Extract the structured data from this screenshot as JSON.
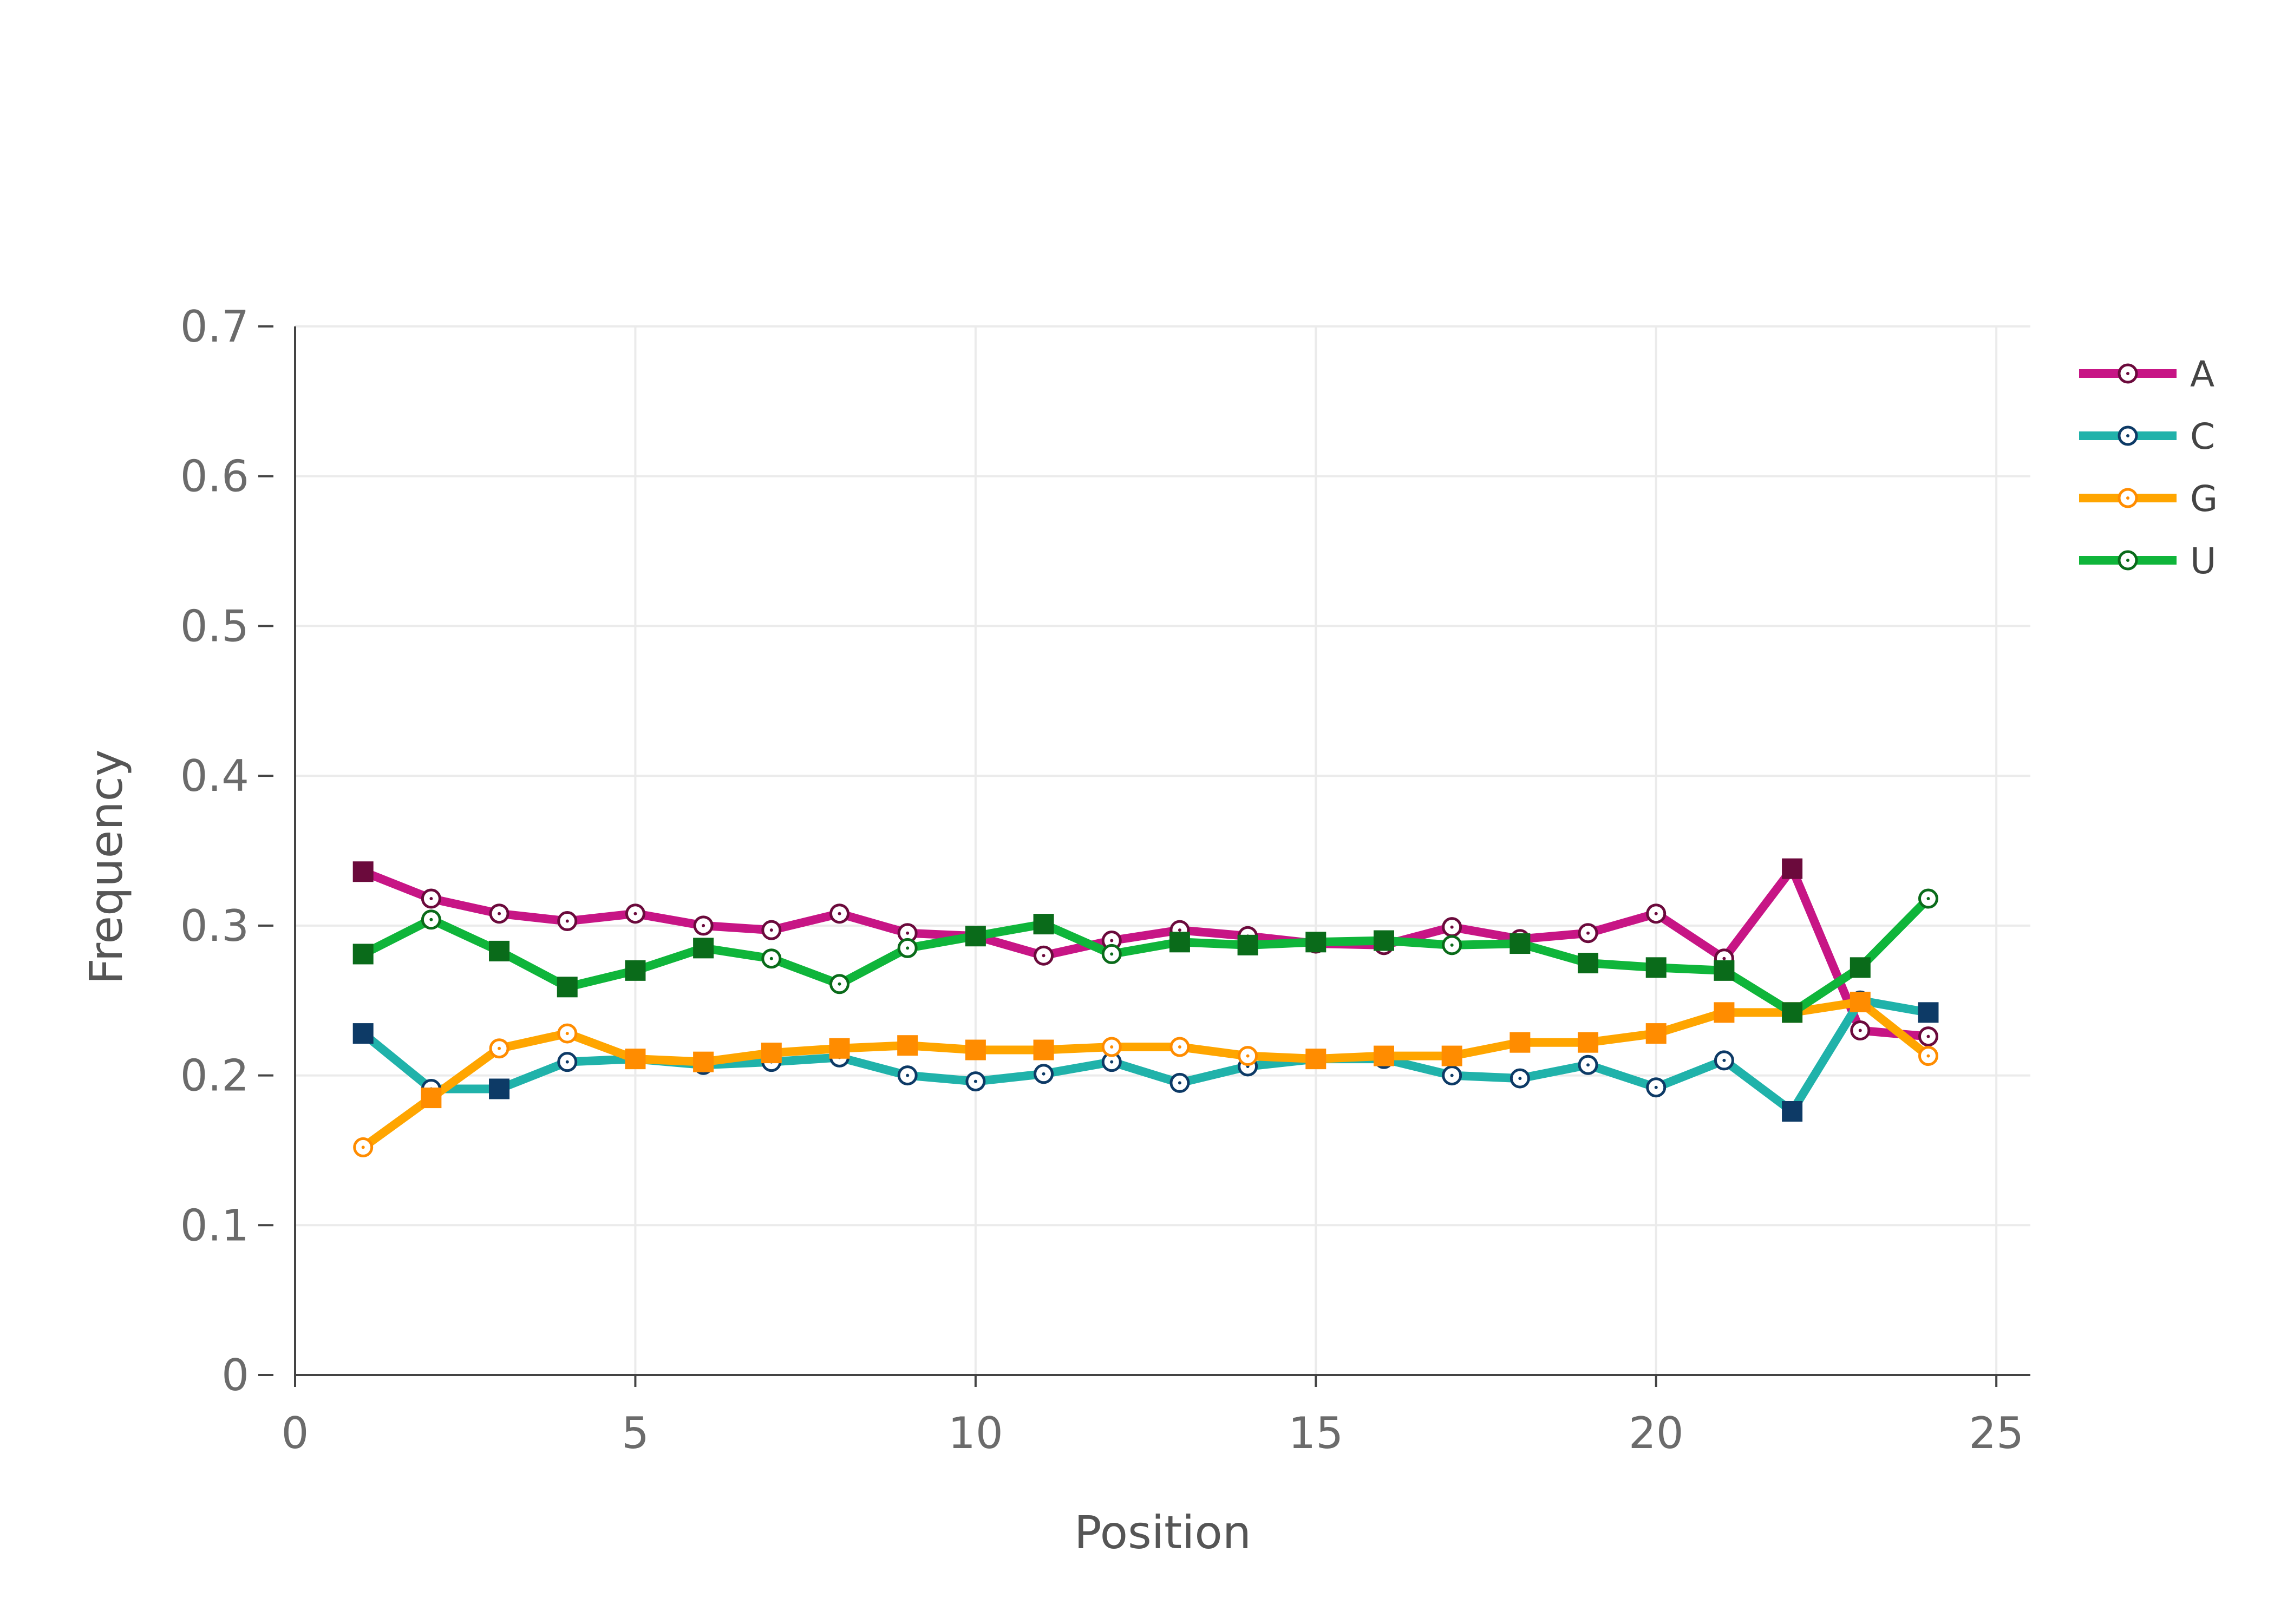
{
  "chart_data": {
    "type": "line",
    "title": "",
    "xlabel": "Position",
    "ylabel": "Frequency",
    "xlim": [
      0,
      25.5
    ],
    "ylim": [
      0,
      0.7
    ],
    "grid": true,
    "legend_position": "top-right",
    "x_ticks": [
      0,
      5,
      10,
      15,
      20,
      25
    ],
    "x_tick_labels": [
      "0",
      "5",
      "10",
      "15",
      "20",
      "25"
    ],
    "y_ticks": [
      0,
      0.1,
      0.2,
      0.3,
      0.4,
      0.5,
      0.6,
      0.7
    ],
    "y_tick_labels": [
      "0",
      "0.1",
      "0.2",
      "0.3",
      "0.4",
      "0.5",
      "0.6",
      "0.7"
    ],
    "x": [
      1,
      2,
      3,
      4,
      5,
      6,
      7,
      8,
      9,
      10,
      11,
      12,
      13,
      14,
      15,
      16,
      17,
      18,
      19,
      20,
      21,
      22,
      23,
      24
    ],
    "series": [
      {
        "name": "A",
        "color": "#c71585",
        "marker_color": "#6b0a3c",
        "values": [
          0.336,
          0.318,
          0.308,
          0.303,
          0.308,
          0.3,
          0.297,
          0.308,
          0.295,
          0.293,
          0.28,
          0.29,
          0.297,
          0.293,
          0.288,
          0.287,
          0.299,
          0.291,
          0.295,
          0.308,
          0.278,
          0.338,
          0.23,
          0.226
        ],
        "markers": [
          "square",
          "circle",
          "circle",
          "circle",
          "circle",
          "circle",
          "circle",
          "circle",
          "circle",
          "circle",
          "circle",
          "circle",
          "circle",
          "circle",
          "circle",
          "circle",
          "circle",
          "circle",
          "circle",
          "circle",
          "circle",
          "square",
          "circle",
          "circle"
        ]
      },
      {
        "name": "C",
        "color": "#20b2aa",
        "marker_color": "#0d3a66",
        "values": [
          0.228,
          0.191,
          0.191,
          0.209,
          0.211,
          0.207,
          0.209,
          0.212,
          0.2,
          0.196,
          0.201,
          0.209,
          0.195,
          0.206,
          0.211,
          0.211,
          0.2,
          0.198,
          0.207,
          0.192,
          0.21,
          0.176,
          0.25,
          0.242
        ],
        "markers": [
          "square",
          "circle",
          "square",
          "circle",
          "circle",
          "circle",
          "circle",
          "circle",
          "circle",
          "circle",
          "circle",
          "circle",
          "circle",
          "circle",
          "circle",
          "circle",
          "circle",
          "circle",
          "circle",
          "circle",
          "circle",
          "square",
          "circle",
          "square"
        ]
      },
      {
        "name": "G",
        "color": "#ffa500",
        "marker_color": "#ff8c00",
        "values": [
          0.152,
          0.185,
          0.218,
          0.228,
          0.211,
          0.209,
          0.215,
          0.218,
          0.22,
          0.217,
          0.217,
          0.219,
          0.219,
          0.213,
          0.211,
          0.213,
          0.213,
          0.222,
          0.222,
          0.228,
          0.242,
          0.242,
          0.249,
          0.213
        ],
        "markers": [
          "circle",
          "square",
          "circle",
          "circle",
          "square",
          "square",
          "square",
          "square",
          "square",
          "square",
          "square",
          "circle",
          "circle",
          "circle",
          "square",
          "square",
          "square",
          "square",
          "square",
          "square",
          "square",
          "square",
          "square",
          "circle"
        ]
      },
      {
        "name": "U",
        "color": "#0fb53a",
        "marker_color": "#0a6b1a",
        "values": [
          0.281,
          0.304,
          0.283,
          0.259,
          0.27,
          0.285,
          0.278,
          0.261,
          0.285,
          0.293,
          0.301,
          0.281,
          0.289,
          0.287,
          0.289,
          0.29,
          0.287,
          0.288,
          0.275,
          0.272,
          0.27,
          0.242,
          0.272,
          0.318
        ],
        "markers": [
          "square",
          "circle",
          "square",
          "square",
          "square",
          "square",
          "circle",
          "circle",
          "circle",
          "square",
          "square",
          "circle",
          "square",
          "square",
          "square",
          "square",
          "circle",
          "square",
          "square",
          "square",
          "square",
          "square",
          "square",
          "circle"
        ]
      }
    ]
  }
}
